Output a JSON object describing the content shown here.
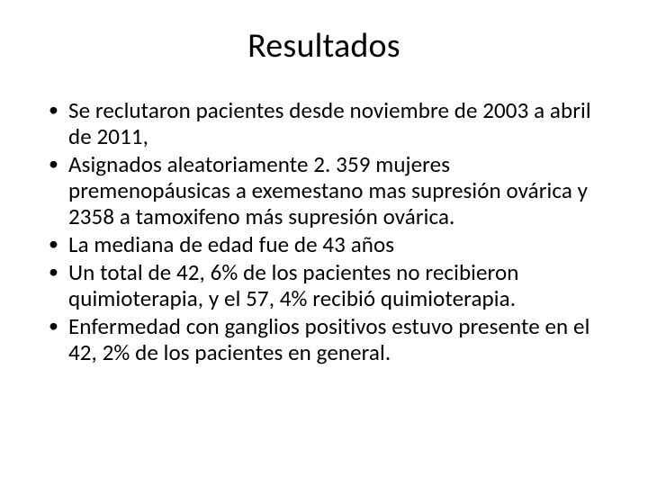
{
  "slide": {
    "title": "Resultados",
    "bullets": [
      "Se reclutaron pacientes desde noviembre de 2003 a abril de 2011,",
      "Asignados aleatoriamente 2. 359 mujeres premenopáusicas a exemestano mas supresión ovárica y 2358 a tamoxifeno más supresión ovárica.",
      "La mediana de edad fue de 43 años",
      "Un total de 42, 6% de los pacientes no recibieron quimioterapia, y el 57, 4% recibió quimioterapia.",
      "Enfermedad con ganglios positivos estuvo presente en el 42, 2% de los pacientes en general."
    ],
    "style": {
      "background_color": "#ffffff",
      "text_color": "#000000",
      "title_fontsize": 38,
      "body_fontsize": 25,
      "font_family": "Calibri",
      "bullet_char": "•"
    }
  }
}
